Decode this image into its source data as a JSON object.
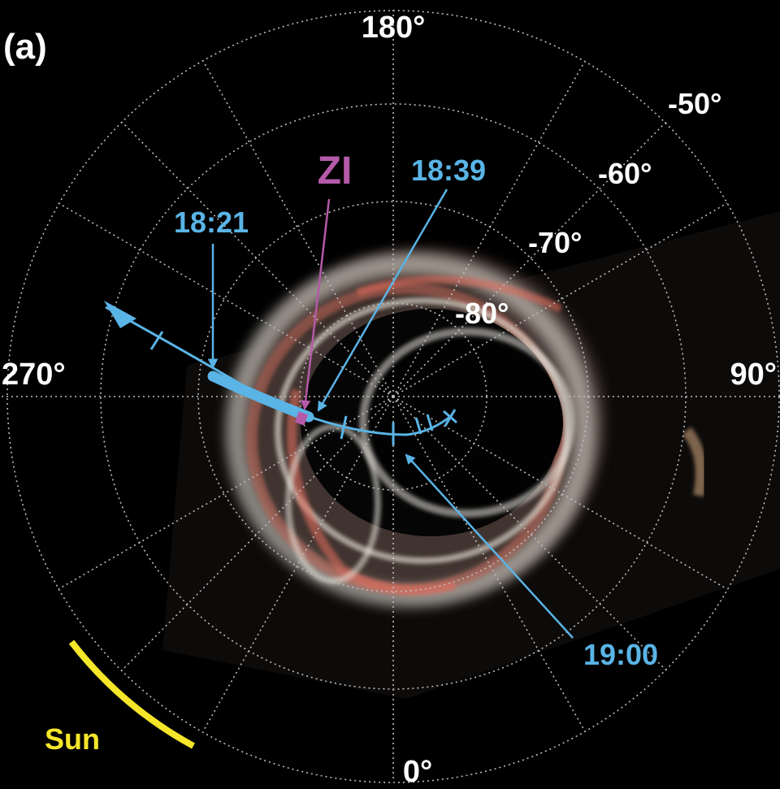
{
  "panel_label": "(a)",
  "longitude_labels": {
    "top": "180°",
    "right": "90°",
    "bottom": "0°",
    "left": "270°"
  },
  "latitude_labels": [
    "-50°",
    "-60°",
    "-70°",
    "-80°"
  ],
  "trajectory_times": {
    "t1821": "18:21",
    "t1839": "18:39",
    "t1900": "19:00"
  },
  "zi_label": "ZI",
  "sun_label": "Sun",
  "colors": {
    "background": "#000000",
    "grid": "#bdbdbd",
    "trajectory": "#5ab4e6",
    "zi": "#b45aa8",
    "sun": "#f5e62a",
    "text": "#ffffff"
  }
}
